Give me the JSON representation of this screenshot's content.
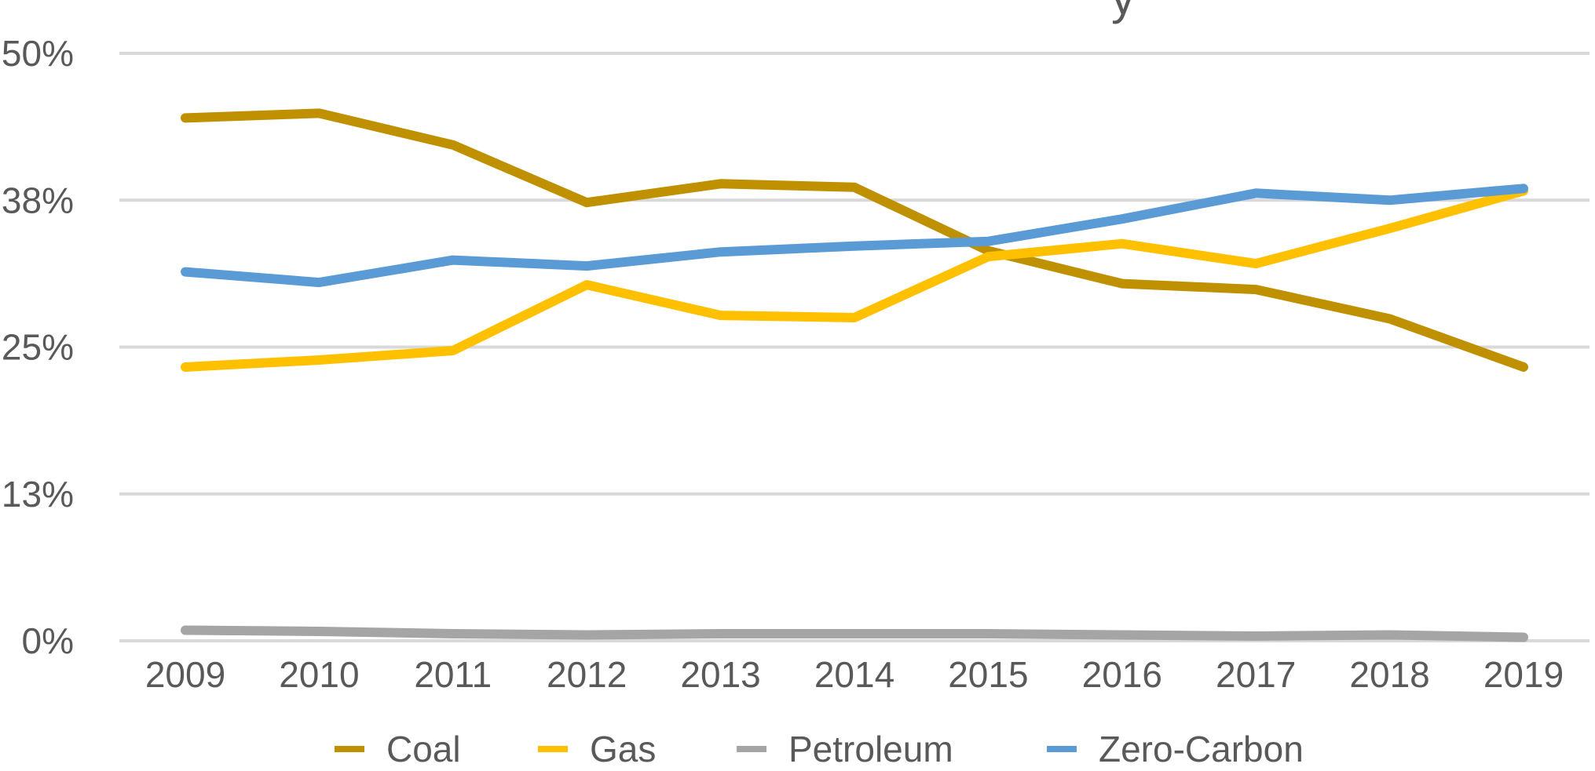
{
  "chart_data": {
    "type": "line",
    "title_fragment": "y",
    "categories": [
      "2009",
      "2010",
      "2011",
      "2012",
      "2013",
      "2014",
      "2015",
      "2016",
      "2017",
      "2018",
      "2019"
    ],
    "y_tick_labels": [
      "0%",
      "13%",
      "25%",
      "38%",
      "50%"
    ],
    "y_tick_values": [
      0,
      12.5,
      25,
      37.5,
      50
    ],
    "ylim": [
      0,
      50
    ],
    "grid": true,
    "legend_position": "bottom",
    "series": [
      {
        "name": "Coal",
        "color": "#BF9000",
        "values": [
          44.5,
          44.9,
          42.2,
          37.3,
          38.9,
          38.6,
          33.2,
          30.4,
          29.9,
          27.4,
          23.3
        ]
      },
      {
        "name": "Gas",
        "color": "#FFC000",
        "values": [
          23.3,
          23.9,
          24.7,
          30.3,
          27.7,
          27.5,
          32.7,
          33.8,
          32.1,
          35.1,
          38.3
        ]
      },
      {
        "name": "Petroleum",
        "color": "#A5A5A5",
        "values": [
          0.9,
          0.8,
          0.6,
          0.5,
          0.6,
          0.6,
          0.6,
          0.5,
          0.4,
          0.5,
          0.3
        ]
      },
      {
        "name": "Zero-Carbon",
        "color": "#5B9BD5",
        "values": [
          31.4,
          30.5,
          32.4,
          31.9,
          33.1,
          33.6,
          34.0,
          35.9,
          38.1,
          37.5,
          38.5
        ]
      }
    ]
  }
}
